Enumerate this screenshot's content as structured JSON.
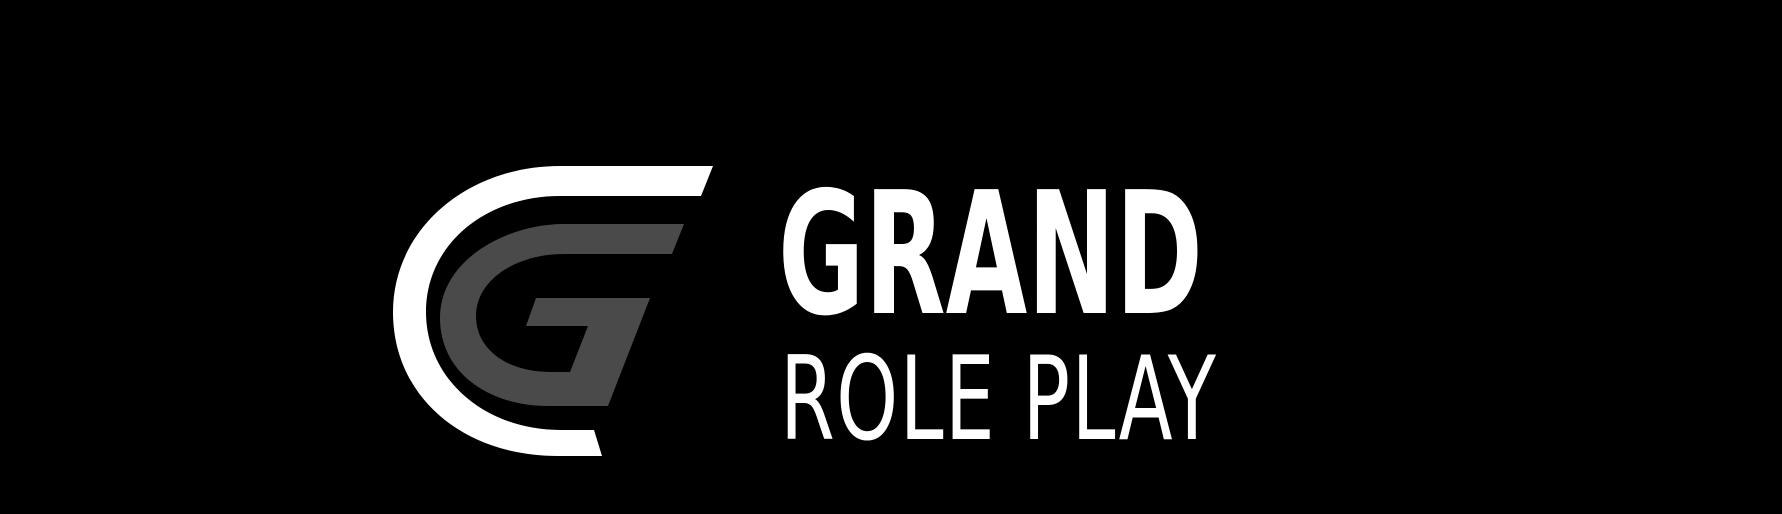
{
  "brand": {
    "line1": "GRAND",
    "line2": "ROLE PLAY",
    "colors": {
      "background": "#000000",
      "primary": "#ffffff",
      "secondary": "#4a4a4a"
    },
    "icon": "g-monogram-icon"
  }
}
